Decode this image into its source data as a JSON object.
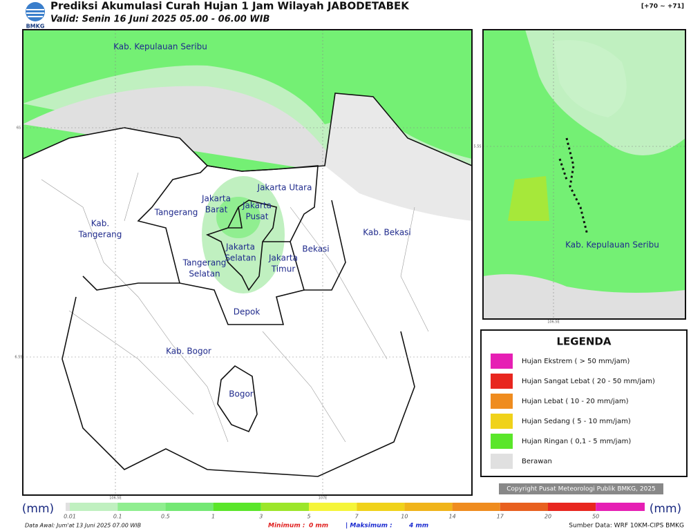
{
  "header": {
    "logo": "BMKG",
    "title": "Prediksi Akumulasi Curah Hujan 1 Jam Wilayah JABODETABEK",
    "subtitle": "Valid: Senin 16 Juni 2025 05.00 - 06.00 WIB",
    "range": "[+70 ~ +71]"
  },
  "main_map": {
    "regions": [
      {
        "lines": [
          "Kab. Kepulauan Seribu"
        ]
      },
      {
        "lines": [
          "Jakarta Utara"
        ]
      },
      {
        "lines": [
          "Jakarta",
          "Barat"
        ]
      },
      {
        "lines": [
          "Jakarta",
          "Pusat"
        ]
      },
      {
        "lines": [
          "Tangerang"
        ]
      },
      {
        "lines": [
          "Kab.",
          "Tangerang"
        ]
      },
      {
        "lines": [
          "Kab. Bekasi"
        ]
      },
      {
        "lines": [
          "Jakarta",
          "Selatan"
        ]
      },
      {
        "lines": [
          "Bekasi"
        ]
      },
      {
        "lines": [
          "Jakarta",
          "Timur"
        ]
      },
      {
        "lines": [
          "Tangerang",
          "Selatan"
        ]
      },
      {
        "lines": [
          "Depok"
        ]
      },
      {
        "lines": [
          "Kab. Bogor"
        ]
      },
      {
        "lines": [
          "Bogor"
        ]
      }
    ],
    "lat_labels": [
      "6S",
      "6.5S"
    ],
    "lon_labels": [
      "106.5E",
      "107E"
    ]
  },
  "inset_map": {
    "regions": [
      {
        "lines": [
          "Kab. Kepulauan Seribu"
        ]
      }
    ],
    "lat_labels": [
      "5.5S"
    ],
    "lon_labels": [
      "106.5E"
    ]
  },
  "legend": {
    "title": "LEGENDA",
    "items": [
      "Hujan Ekstrem ( > 50 mm/jam)",
      "Hujan Sangat Lebat ( 20 - 50 mm/jam)",
      "Hujan Lebat ( 10 - 20 mm/jam)",
      "Hujan Sedang ( 5 - 10 mm/jam)",
      "Hujan Ringan ( 0,1 - 5 mm/jam)",
      "Berawan"
    ]
  },
  "copyright": "Copyright Pusat Meteorologi Publik BMKG, 2025",
  "colorbar": {
    "unit_left": "(mm)",
    "unit_right": "(mm)",
    "labels": [
      "0.01",
      "0.1",
      "0.5",
      "1",
      "3",
      "5",
      "7",
      "10",
      "14",
      "17",
      "20",
      "50"
    ]
  },
  "footer": {
    "initial": "Data Awal: Jum'at 13 Juni 2025 07.00 WIB",
    "min_label": "Minimum :",
    "min_value": "0 mm",
    "max_label": "| Maksimum :",
    "max_value": "4 mm",
    "source": "Sumber Data: WRF 10KM-CIPS BMKG"
  }
}
